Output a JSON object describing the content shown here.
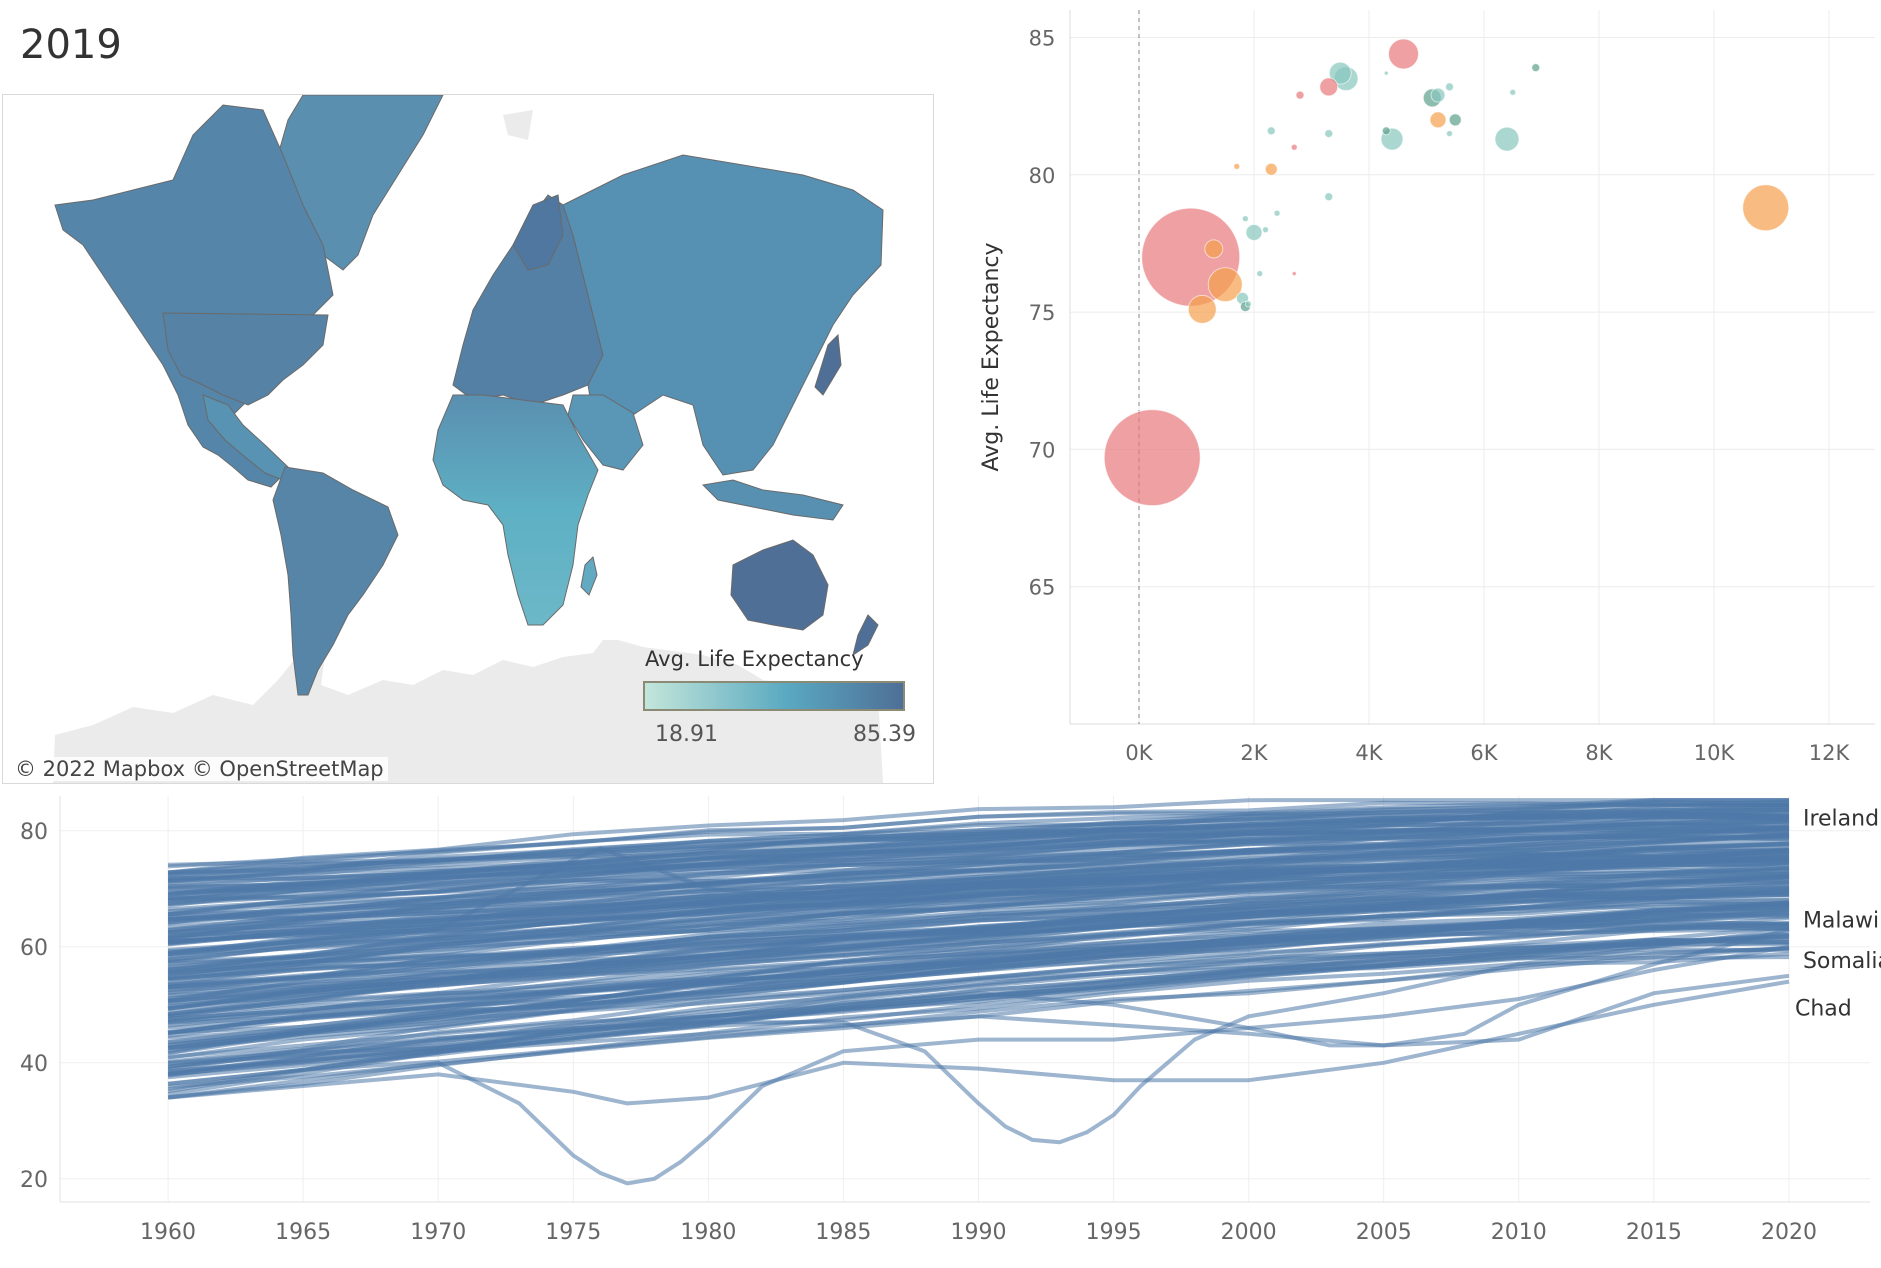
{
  "dashboard": {
    "title": "2019"
  },
  "map": {
    "legend_title": "Avg. Life Expectancy",
    "legend_min": "18.91",
    "legend_max": "85.39",
    "attribution": "© 2022 Mapbox  © OpenStreetMap",
    "colors": {
      "low": "#c3e6da",
      "mid": "#5aa9c1",
      "high": "#4e6f96",
      "land_missing": "#ebebeb"
    }
  },
  "chart_data": [
    {
      "type": "scatter",
      "ylabel": "Avg. Life Expectancy",
      "xlabel": "",
      "xlim": [
        -1200,
        12800
      ],
      "ylim": [
        60,
        86
      ],
      "x_ticks": [
        0,
        2000,
        4000,
        6000,
        8000,
        10000,
        12000
      ],
      "x_tick_labels": [
        "0K",
        "2K",
        "4K",
        "6K",
        "8K",
        "10K",
        "12K"
      ],
      "y_ticks": [
        65,
        70,
        75,
        80,
        85
      ],
      "y_tick_labels": [
        "65",
        "70",
        "75",
        "80",
        "85"
      ],
      "reference_line_x": 0,
      "grid": true,
      "colors": [
        "#e8787a",
        "#f5a04d",
        "#88c6be",
        "#5ba08a"
      ],
      "points": [
        {
          "x": 230,
          "y": 69.7,
          "size": 48,
          "color": 0
        },
        {
          "x": 900,
          "y": 77.0,
          "size": 49,
          "color": 0
        },
        {
          "x": 1500,
          "y": 76.0,
          "size": 17,
          "color": 1
        },
        {
          "x": 1100,
          "y": 75.1,
          "size": 14,
          "color": 1
        },
        {
          "x": 1300,
          "y": 77.3,
          "size": 9,
          "color": 1
        },
        {
          "x": 1800,
          "y": 75.5,
          "size": 6,
          "color": 2
        },
        {
          "x": 1850,
          "y": 75.2,
          "size": 5,
          "color": 3
        },
        {
          "x": 10900,
          "y": 78.8,
          "size": 23,
          "color": 1
        },
        {
          "x": 4600,
          "y": 84.4,
          "size": 15,
          "color": 0
        },
        {
          "x": 3300,
          "y": 83.2,
          "size": 9,
          "color": 0
        },
        {
          "x": 2800,
          "y": 82.9,
          "size": 4,
          "color": 0
        },
        {
          "x": 3500,
          "y": 83.7,
          "size": 11,
          "color": 2
        },
        {
          "x": 3600,
          "y": 83.5,
          "size": 12,
          "color": 2
        },
        {
          "x": 5100,
          "y": 82.8,
          "size": 9,
          "color": 3
        },
        {
          "x": 5200,
          "y": 82.9,
          "size": 7,
          "color": 2
        },
        {
          "x": 5400,
          "y": 83.2,
          "size": 4,
          "color": 2
        },
        {
          "x": 5500,
          "y": 82.0,
          "size": 6,
          "color": 3
        },
        {
          "x": 5200,
          "y": 82.0,
          "size": 8,
          "color": 1
        },
        {
          "x": 4400,
          "y": 81.3,
          "size": 11,
          "color": 2
        },
        {
          "x": 6400,
          "y": 81.3,
          "size": 12,
          "color": 2
        },
        {
          "x": 5400,
          "y": 81.5,
          "size": 3,
          "color": 2
        },
        {
          "x": 6900,
          "y": 83.9,
          "size": 4,
          "color": 3
        },
        {
          "x": 6500,
          "y": 83.0,
          "size": 3,
          "color": 2
        },
        {
          "x": 4300,
          "y": 81.6,
          "size": 4,
          "color": 3
        },
        {
          "x": 3300,
          "y": 81.5,
          "size": 4,
          "color": 2
        },
        {
          "x": 2300,
          "y": 81.6,
          "size": 4,
          "color": 2
        },
        {
          "x": 2700,
          "y": 81.0,
          "size": 3,
          "color": 0
        },
        {
          "x": 2300,
          "y": 80.2,
          "size": 6,
          "color": 1
        },
        {
          "x": 1700,
          "y": 80.3,
          "size": 3,
          "color": 1
        },
        {
          "x": 3300,
          "y": 79.2,
          "size": 4,
          "color": 2
        },
        {
          "x": 2400,
          "y": 78.6,
          "size": 3,
          "color": 2
        },
        {
          "x": 2200,
          "y": 78.0,
          "size": 3,
          "color": 2
        },
        {
          "x": 2000,
          "y": 77.9,
          "size": 8,
          "color": 2
        },
        {
          "x": 1850,
          "y": 78.4,
          "size": 3,
          "color": 2
        },
        {
          "x": 2100,
          "y": 76.4,
          "size": 3,
          "color": 2
        },
        {
          "x": 2700,
          "y": 76.4,
          "size": 2,
          "color": 0
        },
        {
          "x": 1900,
          "y": 75.3,
          "size": 3,
          "color": 2
        },
        {
          "x": 4300,
          "y": 83.7,
          "size": 2,
          "color": 2
        }
      ]
    },
    {
      "type": "line",
      "xlim": [
        1956,
        2023
      ],
      "ylim": [
        16,
        86
      ],
      "x_ticks": [
        1960,
        1965,
        1970,
        1975,
        1980,
        1985,
        1990,
        1995,
        2000,
        2005,
        2010,
        2015,
        2020
      ],
      "y_ticks": [
        20,
        40,
        60,
        80
      ],
      "y_tick_labels": [
        "20",
        "40",
        "60",
        "80"
      ],
      "grid": true,
      "color": "#4e79a7",
      "country_count": 180,
      "band_start_1960": [
        28,
        73
      ],
      "band_end_2020": [
        53,
        85
      ],
      "labels": [
        {
          "text": "Ireland",
          "y": 82.3
        },
        {
          "text": "Malawi",
          "y": 64.7
        },
        {
          "text": "Somalia",
          "y": 57.7
        },
        {
          "text": "Chad",
          "y": 49.5
        }
      ],
      "highlighted_series": [
        {
          "name": "",
          "x": [
            1960,
            1965,
            1970,
            1973,
            1975,
            1976,
            1977,
            1978,
            1979,
            1980,
            1982,
            1985,
            1990,
            1995,
            2000,
            2005,
            2010,
            2015,
            2020
          ],
          "y": [
            34,
            37,
            40,
            33,
            24,
            21,
            19.2,
            20,
            23,
            27,
            36,
            42,
            44,
            44,
            46,
            48,
            51,
            56,
            60
          ]
        },
        {
          "name": "",
          "x": [
            1960,
            1965,
            1970,
            1975,
            1980,
            1985,
            1988,
            1990,
            1991,
            1992,
            1993,
            1994,
            1995,
            1996,
            1998,
            2000,
            2005,
            2010,
            2015,
            2020
          ],
          "y": [
            40,
            42,
            44,
            46,
            47,
            47,
            42,
            33,
            29,
            26.7,
            26.3,
            28,
            31,
            36,
            44,
            48,
            52,
            57,
            60,
            63
          ]
        },
        {
          "name": "",
          "x": [
            1960,
            1965,
            1970,
            1975,
            1976,
            1980,
            1985,
            1990,
            1995,
            2000,
            2005,
            2010,
            2015,
            2020
          ],
          "y": [
            61,
            62,
            63,
            75,
            77,
            70,
            68,
            68,
            69,
            70,
            72,
            74,
            75,
            76
          ]
        },
        {
          "name": "",
          "x": [
            1960,
            1965,
            1970,
            1975,
            1977,
            1980,
            1985,
            1990,
            1995,
            2000,
            2005,
            2010,
            2015,
            2020
          ],
          "y": [
            34,
            36,
            38,
            35,
            33,
            34,
            40,
            39,
            37,
            37,
            40,
            45,
            50,
            54
          ]
        },
        {
          "name": "",
          "x": [
            1960,
            1965,
            1970,
            1975,
            1980,
            1985,
            1990,
            1995,
            2000,
            2003,
            2005,
            2008,
            2010,
            2015,
            2020
          ],
          "y": [
            41,
            43,
            45,
            47,
            48,
            50,
            52,
            50,
            46,
            43,
            43,
            45,
            50,
            57,
            63
          ]
        },
        {
          "name": "",
          "x": [
            1960,
            1970,
            1980,
            1990,
            2000,
            2005,
            2010,
            2015,
            2020
          ],
          "y": [
            38,
            42,
            45,
            48,
            45,
            43,
            44,
            52,
            55
          ]
        }
      ]
    }
  ]
}
